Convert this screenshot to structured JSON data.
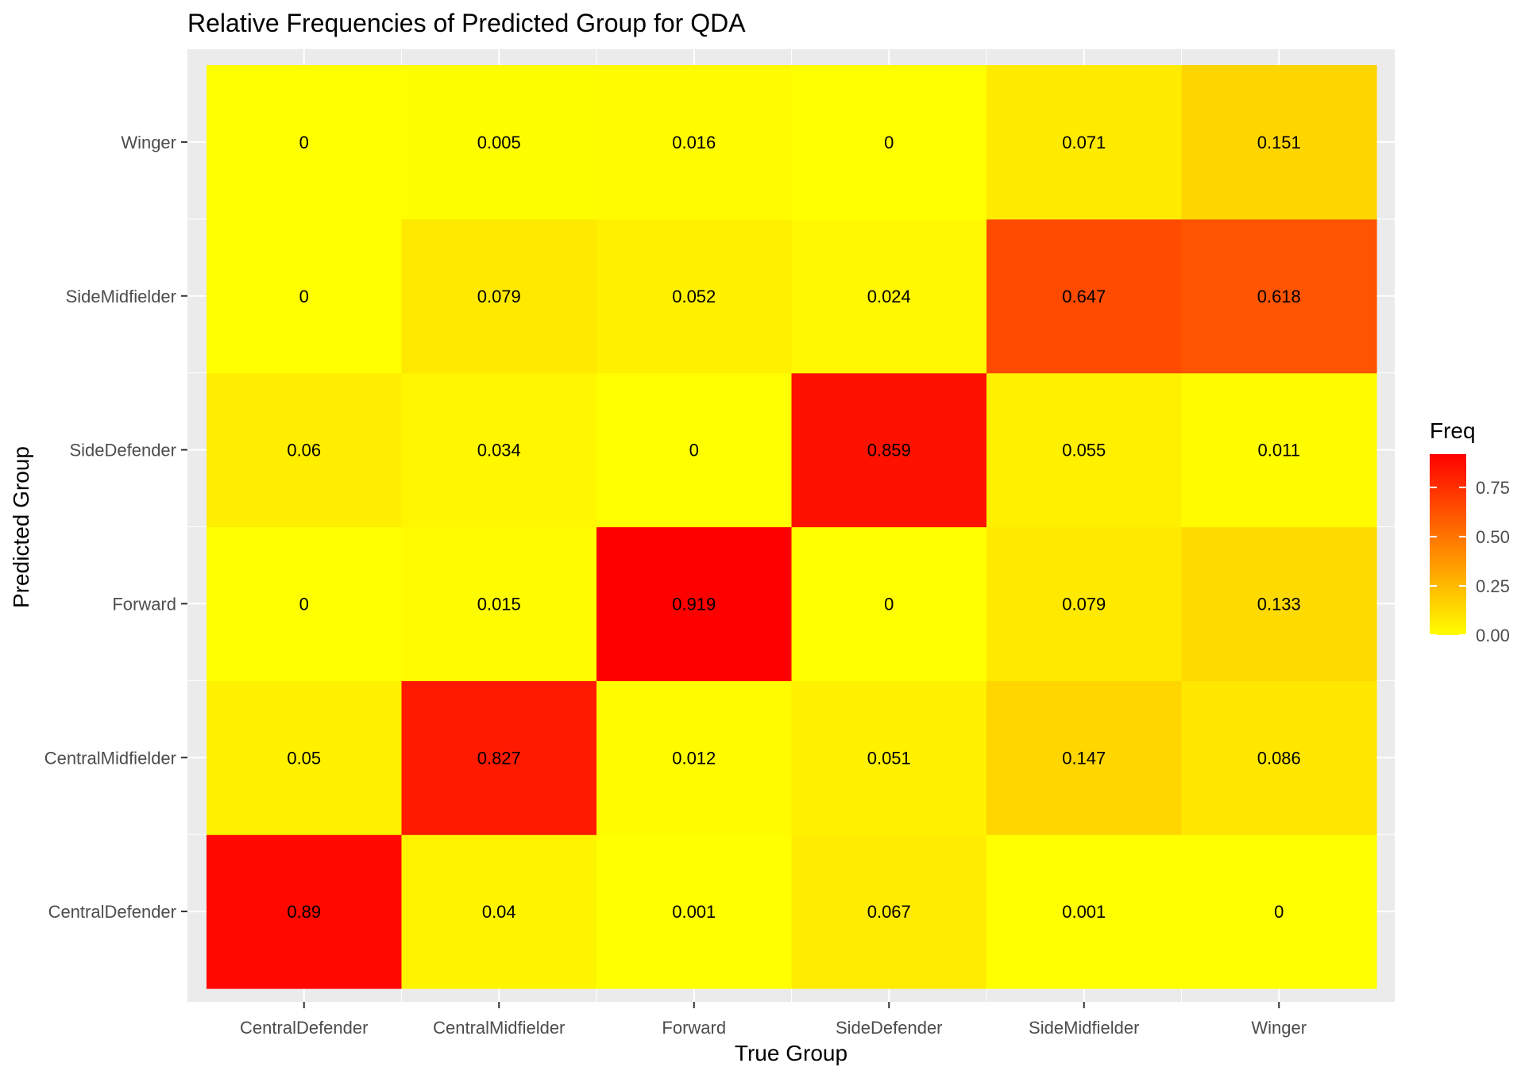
{
  "chart_data": {
    "type": "heatmap",
    "title": "Relative Frequencies of Predicted Group for QDA",
    "xlabel": "True Group",
    "ylabel": "Predicted Group",
    "x_categories": [
      "CentralDefender",
      "CentralMidfielder",
      "Forward",
      "SideDefender",
      "SideMidfielder",
      "Winger"
    ],
    "y_categories": [
      "CentralDefender",
      "CentralMidfielder",
      "Forward",
      "SideDefender",
      "SideMidfielder",
      "Winger"
    ],
    "values": [
      [
        0.89,
        0.04,
        0.001,
        0.067,
        0.001,
        0
      ],
      [
        0.05,
        0.827,
        0.012,
        0.051,
        0.147,
        0.086
      ],
      [
        0,
        0.015,
        0.919,
        0,
        0.079,
        0.133
      ],
      [
        0.06,
        0.034,
        0,
        0.859,
        0.055,
        0.011
      ],
      [
        0,
        0.079,
        0.052,
        0.024,
        0.647,
        0.618
      ],
      [
        0,
        0.005,
        0.016,
        0,
        0.071,
        0.151
      ]
    ],
    "value_labels": [
      [
        "0.89",
        "0.04",
        "0.001",
        "0.067",
        "0.001",
        "0"
      ],
      [
        "0.05",
        "0.827",
        "0.012",
        "0.051",
        "0.147",
        "0.086"
      ],
      [
        "0",
        "0.015",
        "0.919",
        "0",
        "0.079",
        "0.133"
      ],
      [
        "0.06",
        "0.034",
        "0",
        "0.859",
        "0.055",
        "0.011"
      ],
      [
        "0",
        "0.079",
        "0.052",
        "0.024",
        "0.647",
        "0.618"
      ],
      [
        "0",
        "0.005",
        "0.016",
        "0",
        "0.071",
        "0.151"
      ]
    ],
    "legend": {
      "title": "Freq",
      "ticks": [
        0.0,
        0.25,
        0.5,
        0.75
      ],
      "tick_labels": [
        "0.00",
        "0.25",
        "0.50",
        "0.75"
      ],
      "range": [
        0,
        0.919
      ],
      "low_color": "#FFFF00",
      "high_color": "#FF0000",
      "placement": "right"
    },
    "panel_background": "#EBEBEB",
    "grid_color": "#FFFFFF",
    "grid": true
  }
}
